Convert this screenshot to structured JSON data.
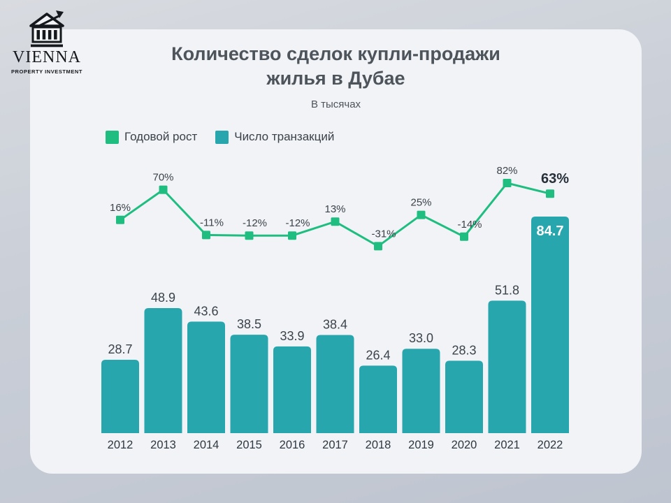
{
  "logo": {
    "name": "VIENNA",
    "tagline": "PROPERTY INVESTMENT"
  },
  "header": {
    "title_line1": "Количество сделок купли-продажи",
    "title_line2": "жилья в Дубае",
    "subtitle": "В тысячах"
  },
  "legend": [
    {
      "label": "Годовой рост",
      "color": "#1fbe80"
    },
    {
      "label": "Число транзакций",
      "color": "#27a6ad"
    }
  ],
  "chart_data": {
    "type": "combo-bar-line",
    "title": "Количество сделок купли-продажи жилья в Дубае",
    "subtitle": "В тысячах",
    "categories": [
      "2012",
      "2013",
      "2014",
      "2015",
      "2016",
      "2017",
      "2018",
      "2019",
      "2020",
      "2021",
      "2022"
    ],
    "series": [
      {
        "name": "Годовой рост",
        "type": "line",
        "unit": "%",
        "color": "#1fbe80",
        "values": [
          16,
          70,
          -11,
          -12,
          -12,
          13,
          -31,
          25,
          -14,
          82,
          63
        ],
        "labels": [
          "16%",
          "70%",
          "-11%",
          "-12%",
          "-12%",
          "13%",
          "-31%",
          "25%",
          "-14%",
          "82%",
          "63%"
        ]
      },
      {
        "name": "Число транзакций",
        "type": "bar",
        "unit": "тысячи",
        "color": "#27a6ad",
        "values": [
          28.7,
          48.9,
          43.6,
          38.5,
          33.9,
          38.4,
          26.4,
          33.0,
          28.3,
          51.8,
          84.7
        ],
        "labels": [
          "28.7",
          "48.9",
          "43.6",
          "38.5",
          "33.9",
          "38.4",
          "26.4",
          "33.0",
          "28.3",
          "51.8",
          "84.7"
        ]
      }
    ],
    "legend_position": "top-left",
    "grid": false,
    "value_label_inside_last_bar": true
  },
  "colors": {
    "background_top": "#d8dbe0",
    "background_bottom": "#bfc5d0",
    "card": "#f1f3f6",
    "title_text": "#4e545c",
    "bar_label_text": "#3b434c",
    "year_label_text": "#2e3842",
    "pct_label_text": "#3c434b",
    "pct_last_label_text": "#262f3a",
    "inside_bar_text": "#ffffff"
  }
}
